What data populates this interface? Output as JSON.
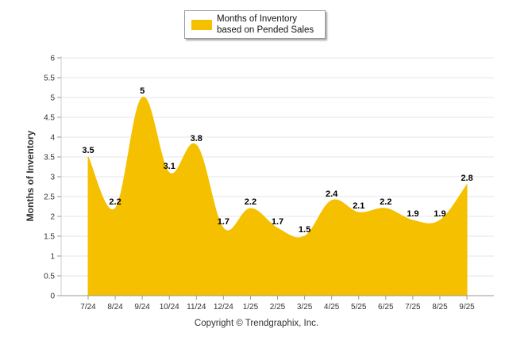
{
  "legend": {
    "label": "Months of Inventory based on Pended Sales"
  },
  "footer": {
    "copyright": "Copyright © Trendgraphix, Inc."
  },
  "colors": {
    "fill": "#F5C000",
    "grid": "#e6e6e6",
    "axis": "#cccccc"
  },
  "chart_data": {
    "type": "area",
    "categories": [
      "7/24",
      "8/24",
      "9/24",
      "10/24",
      "11/24",
      "12/24",
      "1/25",
      "2/25",
      "3/25",
      "4/25",
      "5/25",
      "6/25",
      "7/25",
      "8/25",
      "9/25"
    ],
    "series": [
      {
        "name": "Months of Inventory based on Pended Sales",
        "values": [
          3.5,
          2.2,
          5,
          3.1,
          3.8,
          1.7,
          2.2,
          1.7,
          1.5,
          2.4,
          2.1,
          2.2,
          1.9,
          1.9,
          2.8
        ]
      }
    ],
    "value_labels": [
      "3.5",
      "2.2",
      "5",
      "3.1",
      "3.8",
      "1.7",
      "2.2",
      "1.7",
      "1.5",
      "2.4",
      "2.1",
      "2.2",
      "1.9",
      "1.9",
      "2.8"
    ],
    "ylabel": "Months of Inventory",
    "xlabel": "",
    "ylim": [
      0,
      6
    ],
    "yticks": [
      0,
      0.5,
      1,
      1.5,
      2,
      2.5,
      3,
      3.5,
      4,
      4.5,
      5,
      5.5,
      6
    ],
    "ytick_labels": [
      "0",
      "0.5",
      "1",
      "1.5",
      "2",
      "2.5",
      "3",
      "3.5",
      "4",
      "4.5",
      "5",
      "5.5",
      "6"
    ],
    "grid": true,
    "legend_position": "top-center"
  }
}
